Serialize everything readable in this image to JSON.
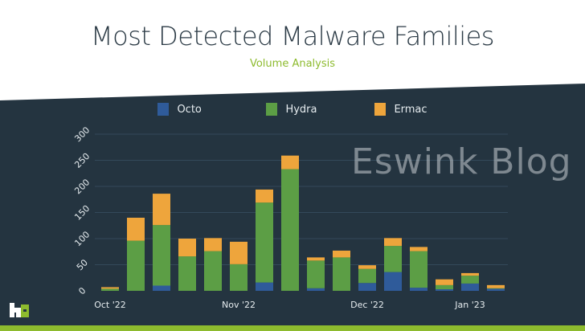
{
  "header": {
    "title": "Most Detected Malware Families",
    "subtitle": "Volume Analysis"
  },
  "watermark": "Eswink Blog",
  "colors": {
    "background": "#243440",
    "octo": "#2f5b9a",
    "hydra": "#5c9e45",
    "ermac": "#eea53c",
    "accent": "#8dbb2e"
  },
  "chart_data": {
    "type": "bar",
    "stacked": true,
    "title": "Most Detected Malware Families",
    "subtitle": "Volume Analysis",
    "ylim": [
      0,
      300
    ],
    "yticks": [
      0,
      50,
      100,
      150,
      200,
      250,
      300
    ],
    "grid": true,
    "legend_placement": "top",
    "x_tick_labels": [
      {
        "index": 0,
        "label": "Oct '22"
      },
      {
        "index": 5,
        "label": "Nov '22"
      },
      {
        "index": 10,
        "label": "Dec '22"
      },
      {
        "index": 14,
        "label": "Jan '23"
      }
    ],
    "series": [
      {
        "name": "Octo",
        "color": "#2f5b9a",
        "values": [
          0,
          0,
          10,
          0,
          0,
          0,
          16,
          0,
          5,
          0,
          15,
          36,
          6,
          3,
          14,
          4
        ]
      },
      {
        "name": "Hydra",
        "color": "#5c9e45",
        "values": [
          4,
          96,
          116,
          66,
          76,
          51,
          153,
          233,
          53,
          64,
          27,
          50,
          70,
          8,
          15,
          1
        ]
      },
      {
        "name": "Ermac",
        "color": "#eea53c",
        "values": [
          3,
          44,
          60,
          34,
          25,
          43,
          25,
          26,
          6,
          13,
          7,
          15,
          8,
          11,
          5,
          6
        ]
      }
    ]
  }
}
